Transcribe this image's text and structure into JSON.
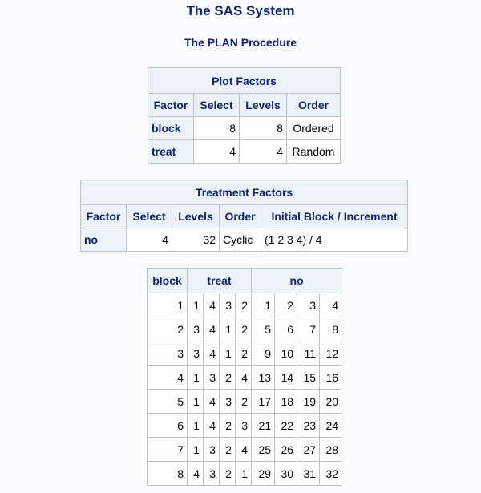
{
  "title": "The SAS System",
  "subtitle": "The PLAN Procedure",
  "plot_factors": {
    "caption": "Plot Factors",
    "headers": [
      "Factor",
      "Select",
      "Levels",
      "Order"
    ],
    "rows": [
      [
        "block",
        "8",
        "8",
        "Ordered"
      ],
      [
        "treat",
        "4",
        "4",
        "Random"
      ]
    ]
  },
  "treatment_factors": {
    "caption": "Treatment Factors",
    "headers": [
      "Factor",
      "Select",
      "Levels",
      "Order",
      "Initial Block / Increment"
    ],
    "rows": [
      [
        "no",
        "4",
        "32",
        "Cyclic",
        "(1 2 3 4) / 4"
      ]
    ]
  },
  "plan": {
    "headers": [
      "block",
      "treat",
      "no"
    ],
    "rows": [
      {
        "block": "1",
        "treat": [
          "1",
          "4",
          "3",
          "2"
        ],
        "no": [
          "1",
          "2",
          "3",
          "4"
        ]
      },
      {
        "block": "2",
        "treat": [
          "3",
          "4",
          "1",
          "2"
        ],
        "no": [
          "5",
          "6",
          "7",
          "8"
        ]
      },
      {
        "block": "3",
        "treat": [
          "3",
          "4",
          "1",
          "2"
        ],
        "no": [
          "9",
          "10",
          "11",
          "12"
        ]
      },
      {
        "block": "4",
        "treat": [
          "1",
          "3",
          "2",
          "4"
        ],
        "no": [
          "13",
          "14",
          "15",
          "16"
        ]
      },
      {
        "block": "5",
        "treat": [
          "1",
          "4",
          "3",
          "2"
        ],
        "no": [
          "17",
          "18",
          "19",
          "20"
        ]
      },
      {
        "block": "6",
        "treat": [
          "1",
          "4",
          "2",
          "3"
        ],
        "no": [
          "21",
          "22",
          "23",
          "24"
        ]
      },
      {
        "block": "7",
        "treat": [
          "1",
          "3",
          "2",
          "4"
        ],
        "no": [
          "25",
          "26",
          "27",
          "28"
        ]
      },
      {
        "block": "8",
        "treat": [
          "4",
          "3",
          "2",
          "1"
        ],
        "no": [
          "29",
          "30",
          "31",
          "32"
        ]
      }
    ]
  }
}
